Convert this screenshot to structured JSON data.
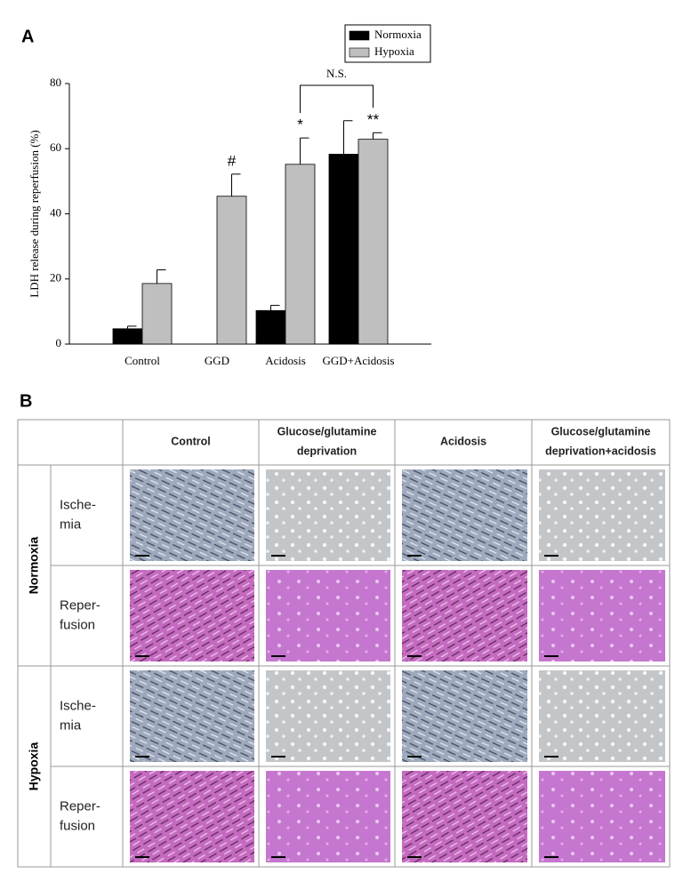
{
  "panel_a": {
    "label": "A"
  },
  "panel_b": {
    "label": "B"
  },
  "chart_data": {
    "type": "bar",
    "ylabel": "LDH release during reperfusion (%)",
    "categories": [
      "Control",
      "GGD",
      "Acidosis",
      "GGD+Acidosis"
    ],
    "series": [
      {
        "name": "Normoxia",
        "color": "#000000",
        "values": [
          4.7,
          null,
          10.3,
          58.3
        ],
        "errors": [
          0.8,
          null,
          1.6,
          10.3
        ]
      },
      {
        "name": "Hypoxia",
        "color": "#bfbfbf",
        "values": [
          18.6,
          45.4,
          55.2,
          62.9
        ],
        "errors": [
          4.2,
          6.8,
          8.1,
          2.0
        ],
        "markers": [
          null,
          "#",
          "*",
          "**"
        ]
      }
    ],
    "bracket_label": "N.S.",
    "ylim": [
      0,
      80
    ],
    "yticks": [
      0,
      20,
      40,
      60,
      80
    ],
    "legend": "top-right"
  },
  "table": {
    "columns": [
      [
        "Control"
      ],
      [
        "Glucose/glutamine",
        "deprivation"
      ],
      [
        "Acidosis"
      ],
      [
        "Glucose/glutamine",
        "deprivation+acidosis"
      ]
    ],
    "groups": [
      {
        "name": "Normoxia",
        "rows": [
          [
            "Ische-",
            "mia"
          ],
          [
            "Reper-",
            "fusion"
          ]
        ]
      },
      {
        "name": "Hypoxia",
        "rows": [
          [
            "Ische-",
            "mia"
          ],
          [
            "Reper-",
            "fusion"
          ]
        ]
      }
    ]
  }
}
